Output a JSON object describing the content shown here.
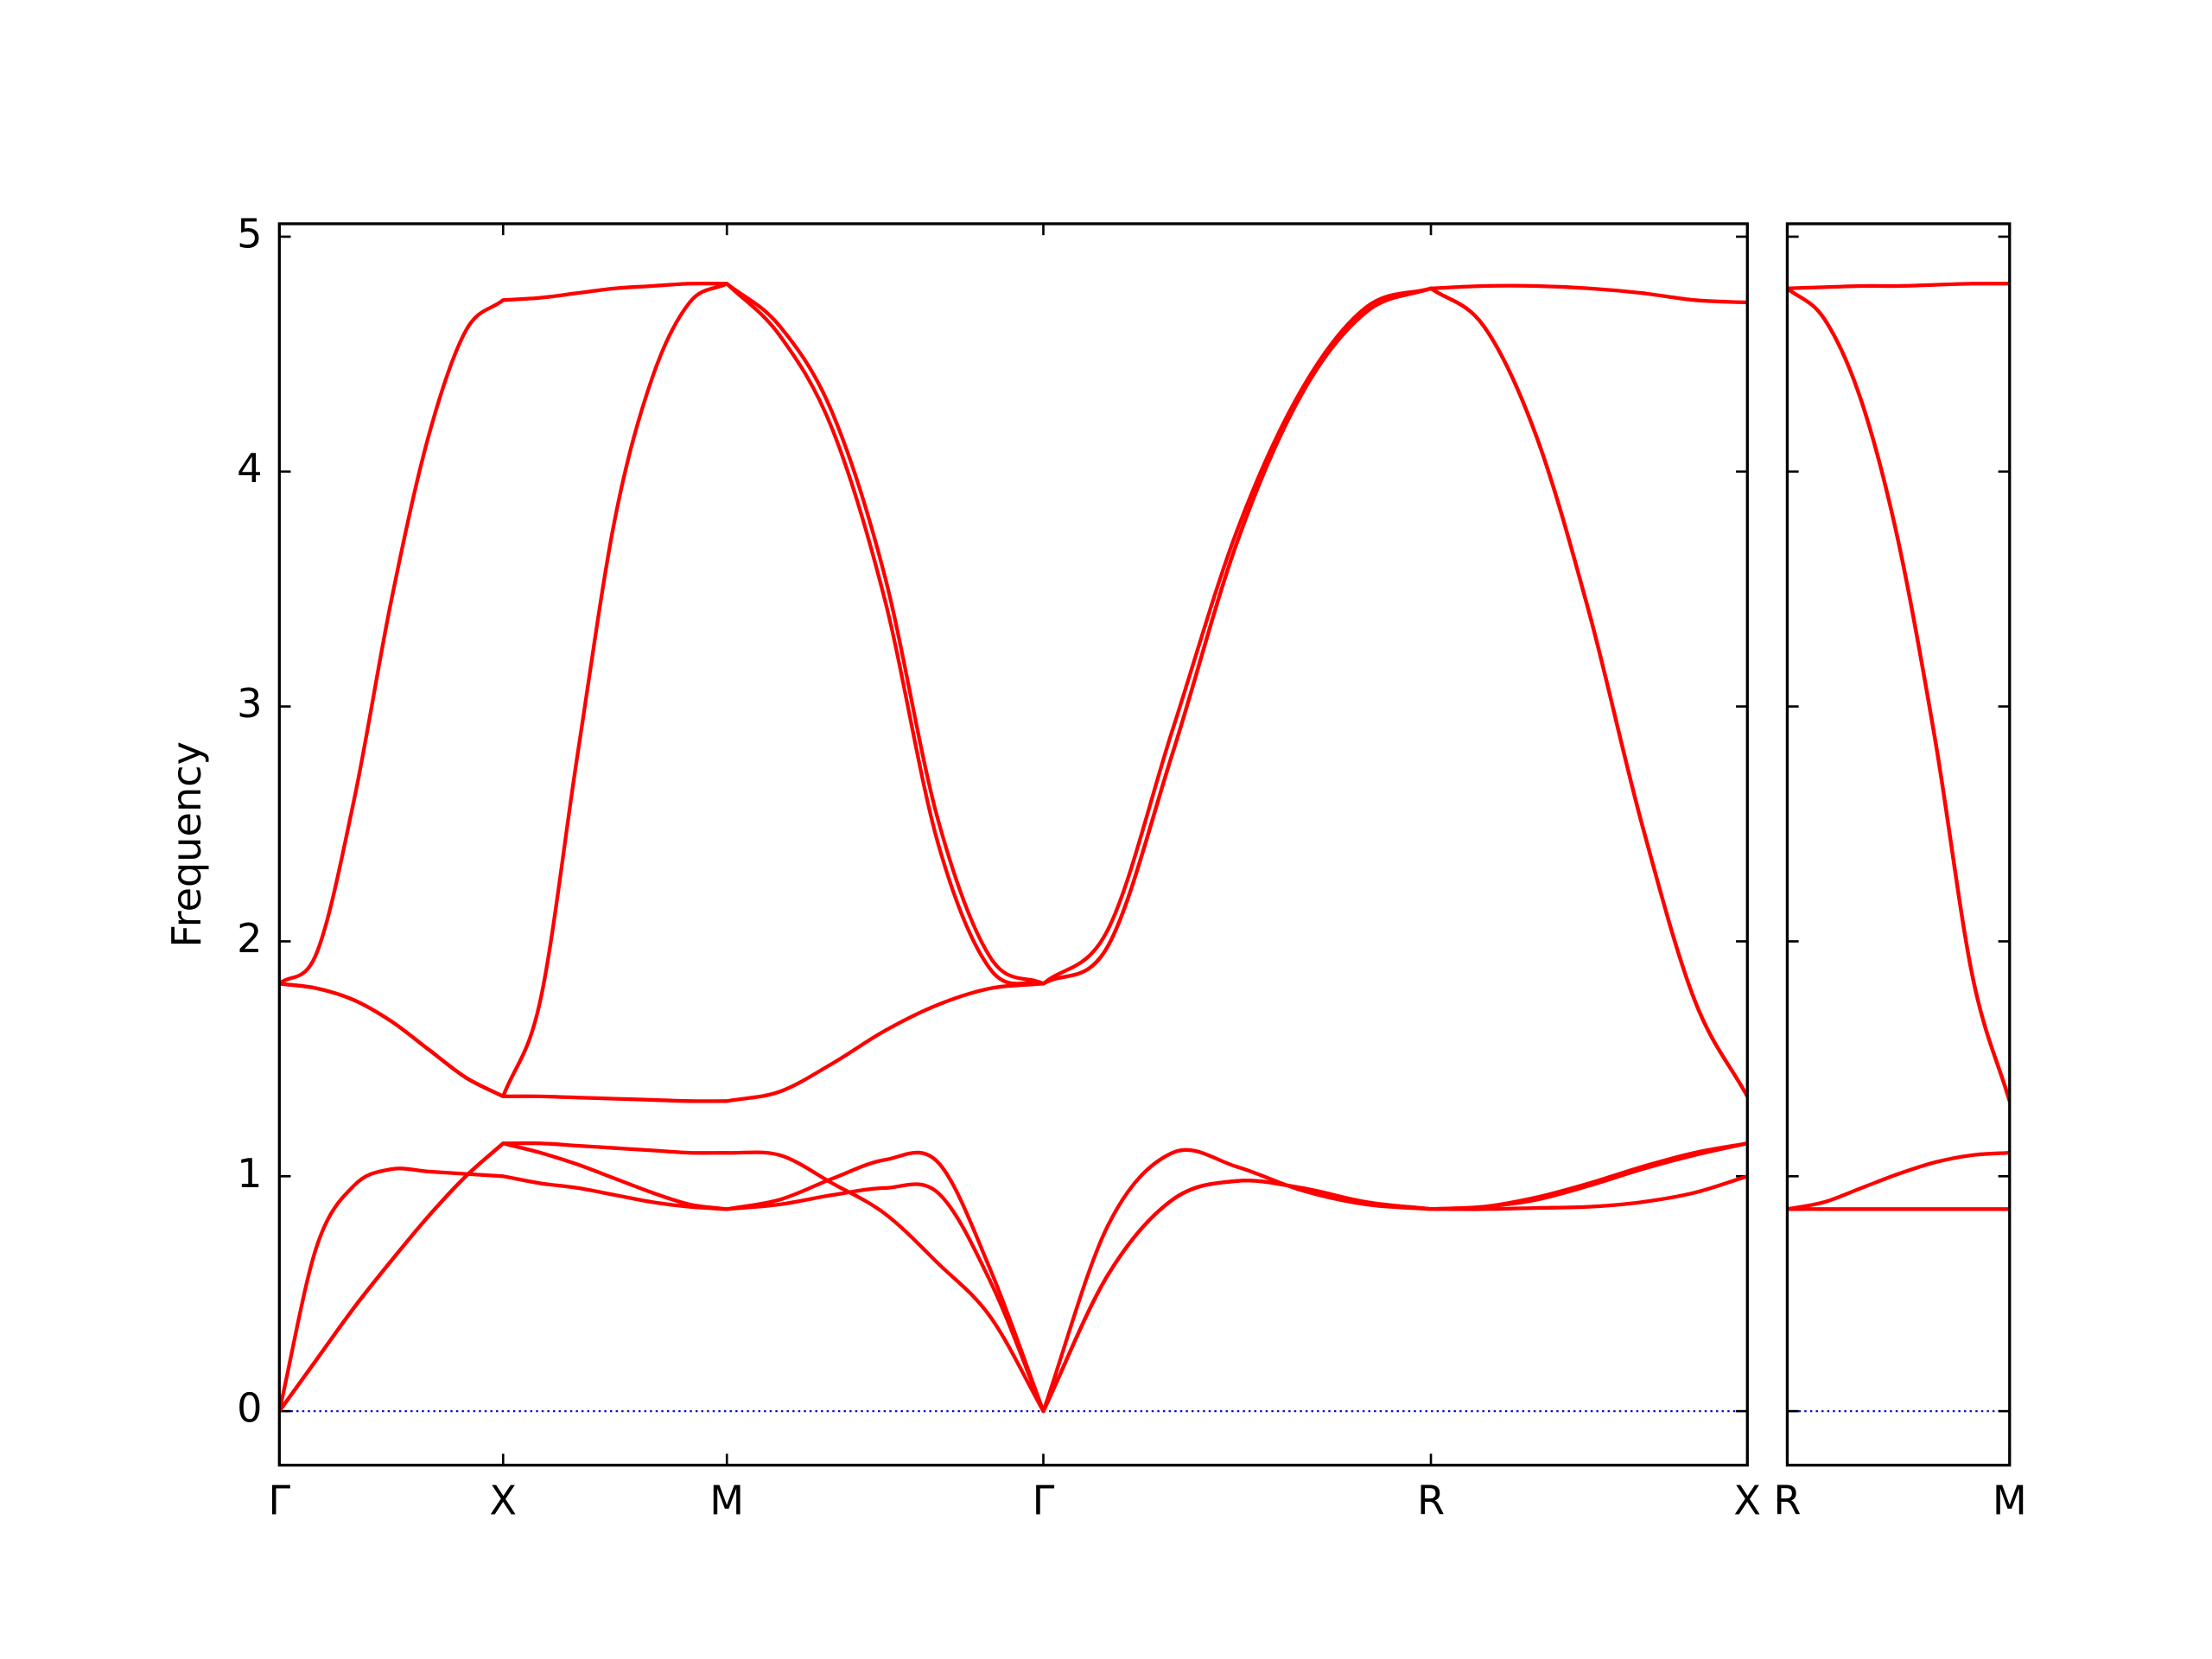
{
  "chart_data": [
    {
      "type": "line",
      "ylabel": "Frequency",
      "x": [
        0,
        0.0833,
        0.1667,
        0.25,
        0.3333,
        0.4167,
        0.5,
        0.5833,
        0.6667,
        0.75,
        0.8333,
        0.9167,
        1.0,
        1.1178,
        1.2357,
        1.3535,
        1.4714,
        1.5892,
        1.7071,
        1.8514,
        1.9957,
        2.1401,
        2.2844,
        2.4287,
        2.5731,
        2.6909,
        2.8088,
        2.9266,
        3.0445,
        3.1623,
        3.2802
      ],
      "xlim": [
        0,
        3.2802
      ],
      "xticks": [
        {
          "value": 0,
          "label": "Γ"
        },
        {
          "value": 0.5,
          "label": "X"
        },
        {
          "value": 1.0,
          "label": "M"
        },
        {
          "value": 1.7071,
          "label": "Γ"
        },
        {
          "value": 2.5731,
          "label": "R"
        },
        {
          "value": 3.2802,
          "label": "X"
        }
      ],
      "ylim": [
        -0.23,
        5.055
      ],
      "yticks": [
        0,
        1,
        2,
        3,
        4,
        5
      ],
      "ytick_labels": true,
      "hline": 0,
      "hline_color": "#0000cc",
      "series": [
        {
          "color": "#ff0000",
          "values": [
            0,
            0.7,
            0.96,
            1.03,
            1.02,
            1.01,
            1.0,
            0.97,
            0.95,
            0.92,
            0.89,
            0.87,
            0.86,
            0.88,
            0.92,
            0.95,
            0.93,
            0.55,
            0,
            0.58,
            0.9,
            0.98,
            0.95,
            0.89,
            0.86,
            0.86,
            0.865,
            0.87,
            0.89,
            0.93,
            1.0
          ]
        },
        {
          "color": "#ff0000",
          "values": [
            0,
            0.22,
            0.44,
            0.64,
            0.83,
            1.0,
            1.14,
            1.1,
            1.05,
            0.99,
            0.93,
            0.88,
            0.86,
            0.9,
            0.99,
            1.07,
            1.06,
            0.6,
            0,
            0.79,
            1.1,
            1.04,
            0.94,
            0.88,
            0.86,
            0.87,
            0.91,
            0.97,
            1.04,
            1.1,
            1.14
          ]
        },
        {
          "color": "#ff0000",
          "values": [
            0,
            0.22,
            0.44,
            0.64,
            0.83,
            1.0,
            1.14,
            1.14,
            1.13,
            1.12,
            1.11,
            1.1,
            1.1,
            1.09,
            0.97,
            0.84,
            0.63,
            0.4,
            0,
            0.58,
            0.9,
            0.98,
            0.95,
            0.89,
            0.86,
            0.87,
            0.9,
            0.96,
            1.03,
            1.09,
            1.14
          ]
        },
        {
          "color": "#ff0000",
          "values": [
            1.82,
            1.95,
            2.6,
            3.45,
            4.15,
            4.6,
            4.73,
            4.74,
            4.76,
            4.78,
            4.79,
            4.8,
            4.8,
            4.62,
            4.25,
            3.55,
            2.52,
            1.93,
            1.82,
            2.05,
            2.9,
            3.75,
            4.35,
            4.7,
            4.78,
            4.79,
            4.79,
            4.78,
            4.76,
            4.73,
            4.72
          ]
        },
        {
          "color": "#ff0000",
          "values": [
            1.82,
            1.8,
            1.75,
            1.66,
            1.54,
            1.42,
            1.34,
            1.75,
            2.8,
            3.8,
            4.4,
            4.72,
            4.8,
            4.58,
            4.18,
            3.45,
            2.42,
            1.88,
            1.82,
            1.98,
            2.8,
            3.7,
            4.33,
            4.68,
            4.78,
            4.62,
            4.15,
            3.4,
            2.5,
            1.75,
            1.34
          ]
        },
        {
          "color": "#ff0000",
          "values": [
            1.82,
            1.8,
            1.75,
            1.66,
            1.54,
            1.42,
            1.34,
            1.34,
            1.335,
            1.33,
            1.325,
            1.32,
            1.32,
            1.36,
            1.48,
            1.62,
            1.73,
            1.8,
            1.82,
            1.98,
            2.8,
            3.7,
            4.33,
            4.68,
            4.78,
            4.62,
            4.15,
            3.4,
            2.5,
            1.75,
            1.34
          ]
        }
      ]
    },
    {
      "type": "line",
      "x": [
        0,
        0.0833,
        0.1667,
        0.25,
        0.3333,
        0.4167,
        0.5
      ],
      "xlim": [
        0,
        0.5
      ],
      "xticks": [
        {
          "value": 0,
          "label": "R"
        },
        {
          "value": 0.5,
          "label": "M"
        }
      ],
      "ylim": [
        -0.23,
        5.055
      ],
      "yticks": [
        0,
        1,
        2,
        3,
        4,
        5
      ],
      "ytick_labels": false,
      "hline": 0,
      "hline_color": "#0000cc",
      "series": [
        {
          "color": "#ff0000",
          "values": [
            0.86,
            0.86,
            0.86,
            0.86,
            0.86,
            0.86,
            0.86
          ]
        },
        {
          "color": "#ff0000",
          "values": [
            0.86,
            0.86,
            0.86,
            0.86,
            0.86,
            0.86,
            0.86
          ]
        },
        {
          "color": "#ff0000",
          "values": [
            0.86,
            0.89,
            0.95,
            1.01,
            1.06,
            1.09,
            1.1
          ]
        },
        {
          "color": "#ff0000",
          "values": [
            4.78,
            4.785,
            4.79,
            4.79,
            4.795,
            4.8,
            4.8
          ]
        },
        {
          "color": "#ff0000",
          "values": [
            4.78,
            4.65,
            4.3,
            3.7,
            2.85,
            1.85,
            1.32
          ]
        },
        {
          "color": "#ff0000",
          "values": [
            4.78,
            4.65,
            4.3,
            3.7,
            2.85,
            1.85,
            1.32
          ]
        }
      ]
    }
  ]
}
